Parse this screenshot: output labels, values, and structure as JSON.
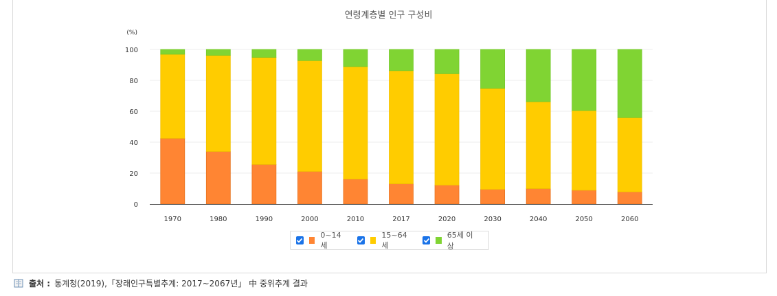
{
  "chart_data": {
    "type": "bar",
    "stacked": true,
    "title": "연령계층별 인구 구성비",
    "ylabel": "(%)",
    "ylim": [
      0,
      100
    ],
    "yticks": [
      0,
      20,
      40,
      60,
      80,
      100
    ],
    "categories": [
      "1970",
      "1980",
      "1990",
      "2000",
      "2010",
      "2017",
      "2020",
      "2030",
      "2040",
      "2050",
      "2060"
    ],
    "series": [
      {
        "name": "0~14세",
        "color": "#ff8533",
        "values": [
          42.5,
          34.0,
          25.6,
          21.1,
          16.1,
          13.1,
          12.2,
          9.5,
          10.0,
          8.9,
          7.8
        ]
      },
      {
        "name": "15~64세",
        "color": "#ffcc00",
        "values": [
          54.4,
          62.2,
          69.3,
          71.7,
          72.8,
          73.2,
          72.1,
          65.4,
          56.2,
          51.6,
          48.1
        ]
      },
      {
        "name": "65세 이상",
        "color": "#80d433",
        "values": [
          3.1,
          3.8,
          5.1,
          7.2,
          11.1,
          13.7,
          15.7,
          25.1,
          33.8,
          39.5,
          44.1
        ]
      }
    ],
    "grid": true,
    "legend_position": "bottom"
  },
  "source": {
    "label": "출처 :",
    "text": "통계청(2019),「장래인구특별추계: 2017~2067년」 中 중위추계 결과"
  },
  "icons": {
    "source_icon": "book-icon",
    "checkbox_icon": "checkbox-checked-icon"
  }
}
